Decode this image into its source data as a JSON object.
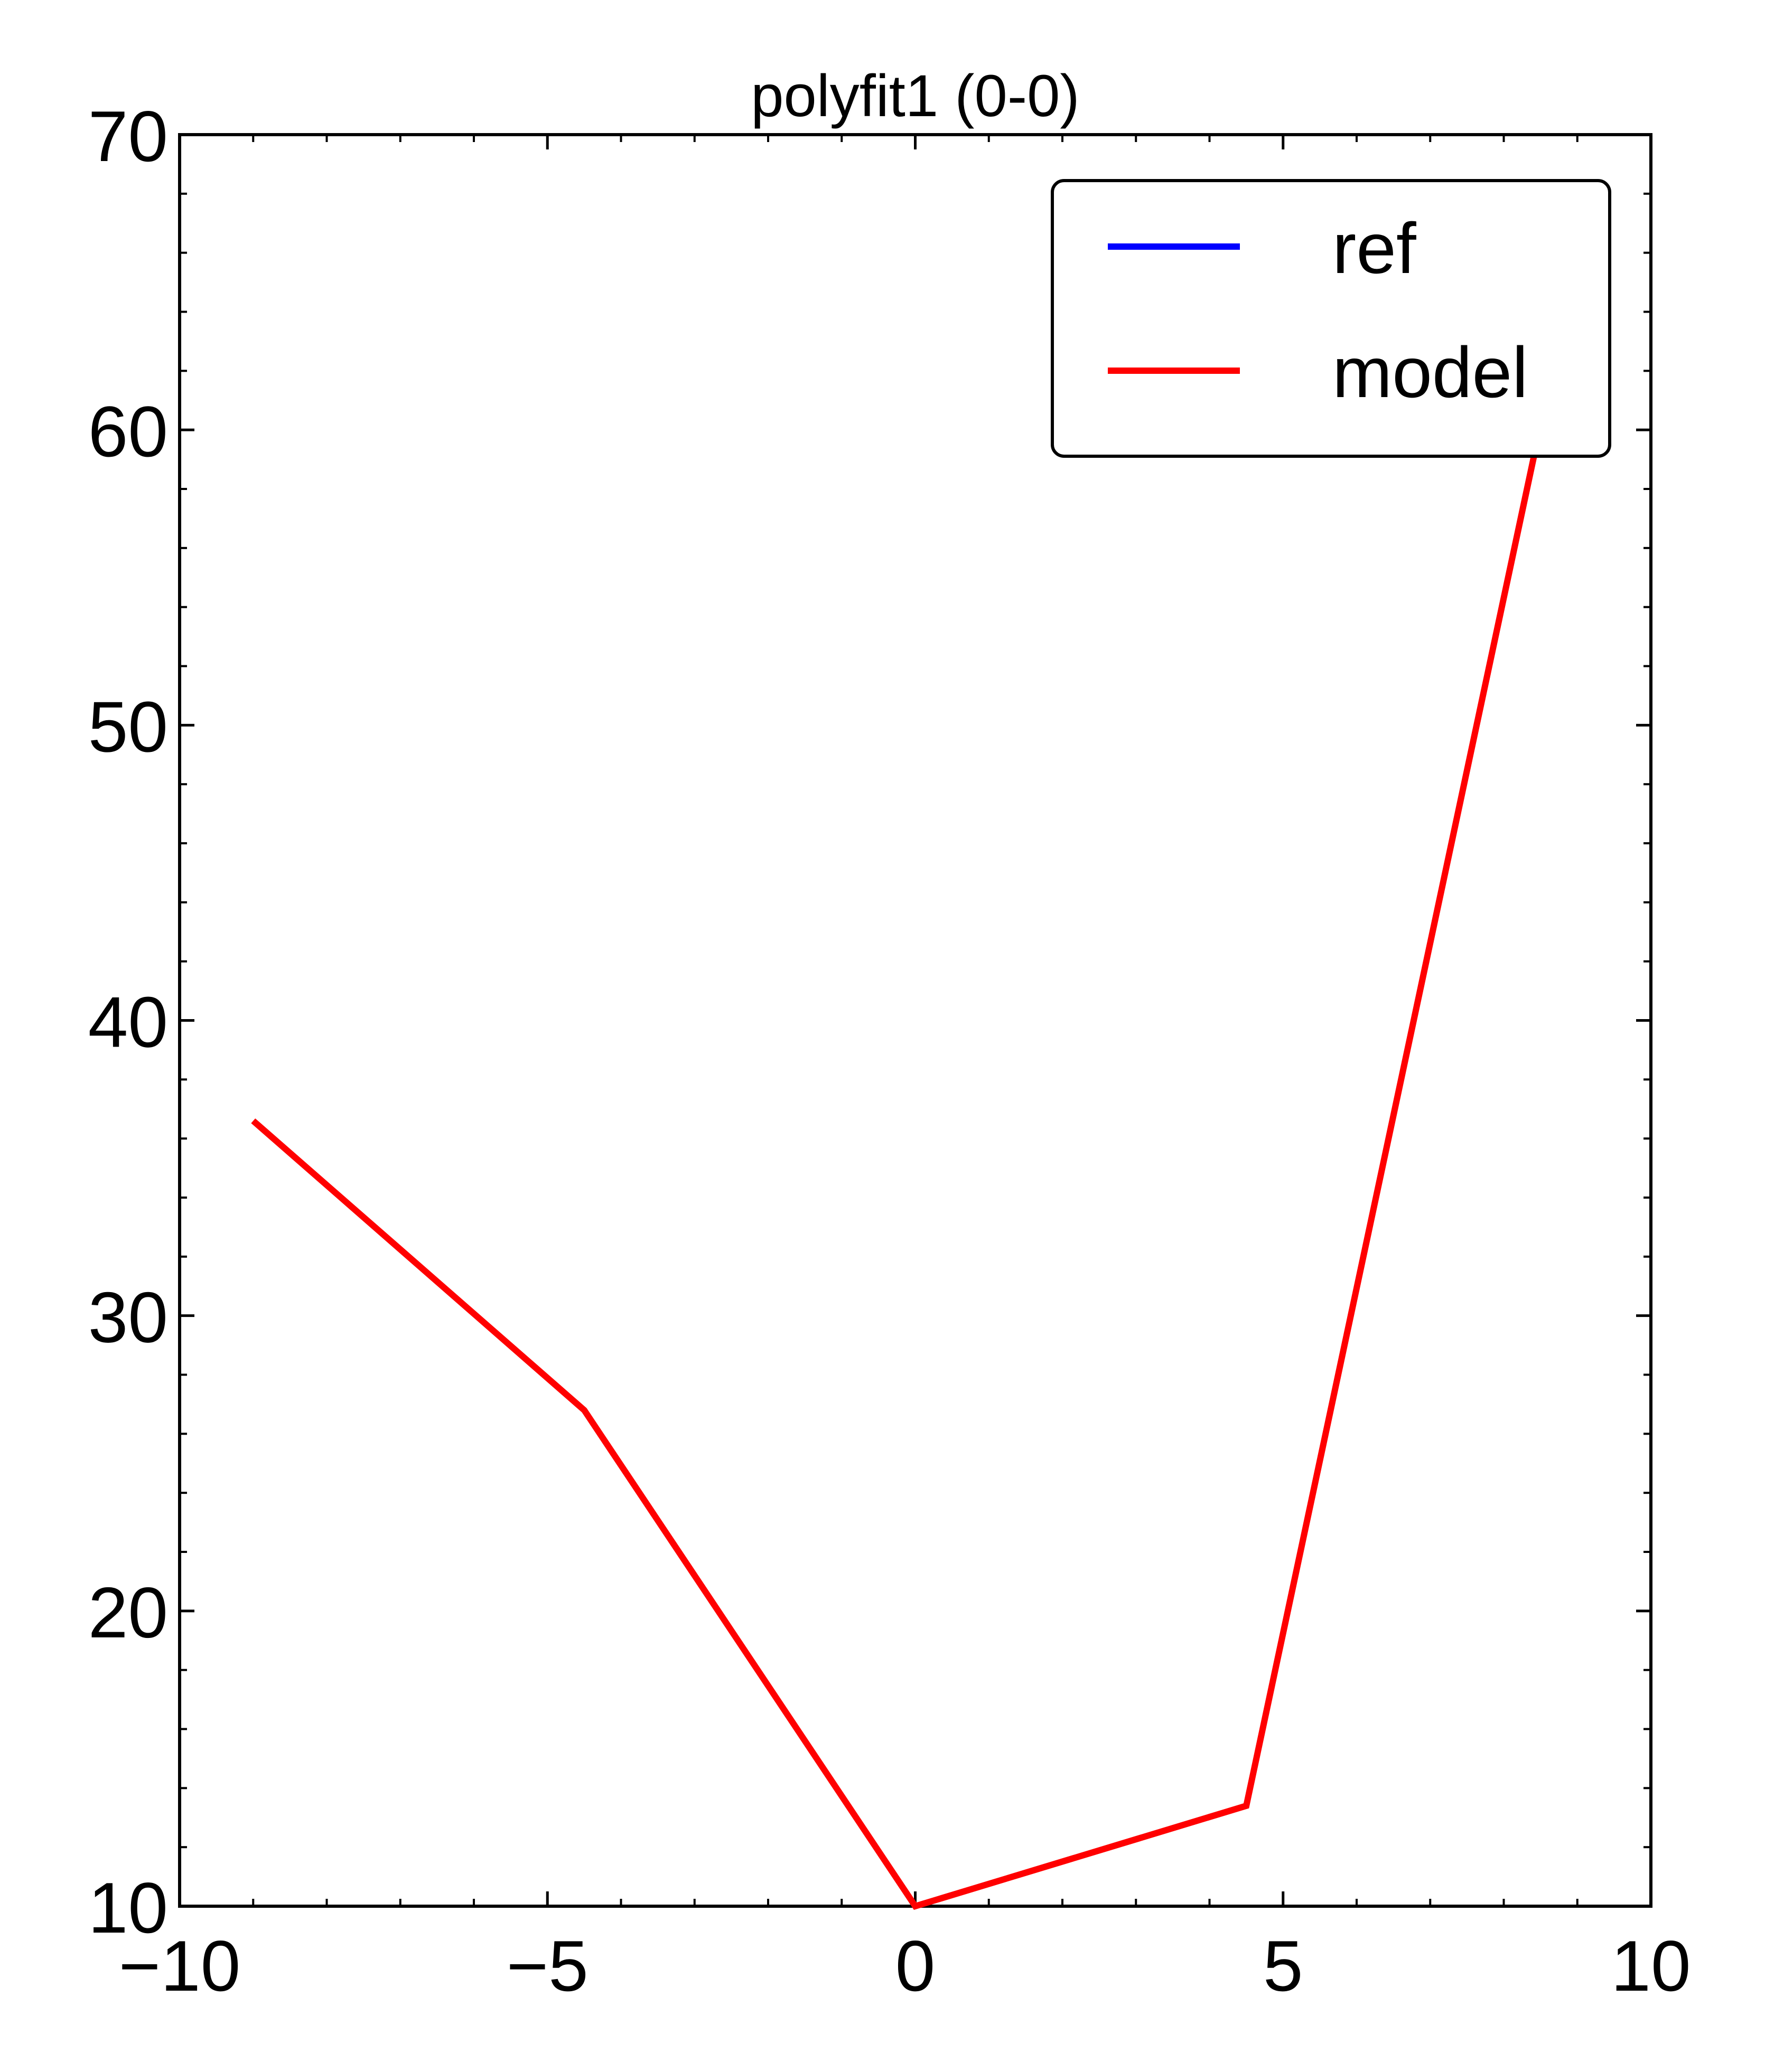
{
  "chart_data": {
    "type": "line",
    "title": "polyfit1 (0-0)",
    "xlabel": "",
    "ylabel": "",
    "xlim": [
      -10,
      10
    ],
    "ylim": [
      10,
      70
    ],
    "xticks": [
      -10,
      -5,
      0,
      5,
      10
    ],
    "xtick_labels": [
      "−10",
      "−5",
      "0",
      "5",
      "10"
    ],
    "yticks": [
      10,
      20,
      30,
      40,
      50,
      60,
      70
    ],
    "ytick_labels": [
      "10",
      "20",
      "30",
      "40",
      "50",
      "60",
      "70"
    ],
    "grid": false,
    "legend_position": "top-right",
    "series": [
      {
        "name": "ref",
        "color": "#0000ff",
        "x": [],
        "y": []
      },
      {
        "name": "model",
        "color": "#ff0000",
        "x": [
          -9,
          -4.5,
          0,
          4.5,
          9
        ],
        "y": [
          36.6,
          26.8,
          10.0,
          13.4,
          66.0
        ]
      }
    ]
  }
}
